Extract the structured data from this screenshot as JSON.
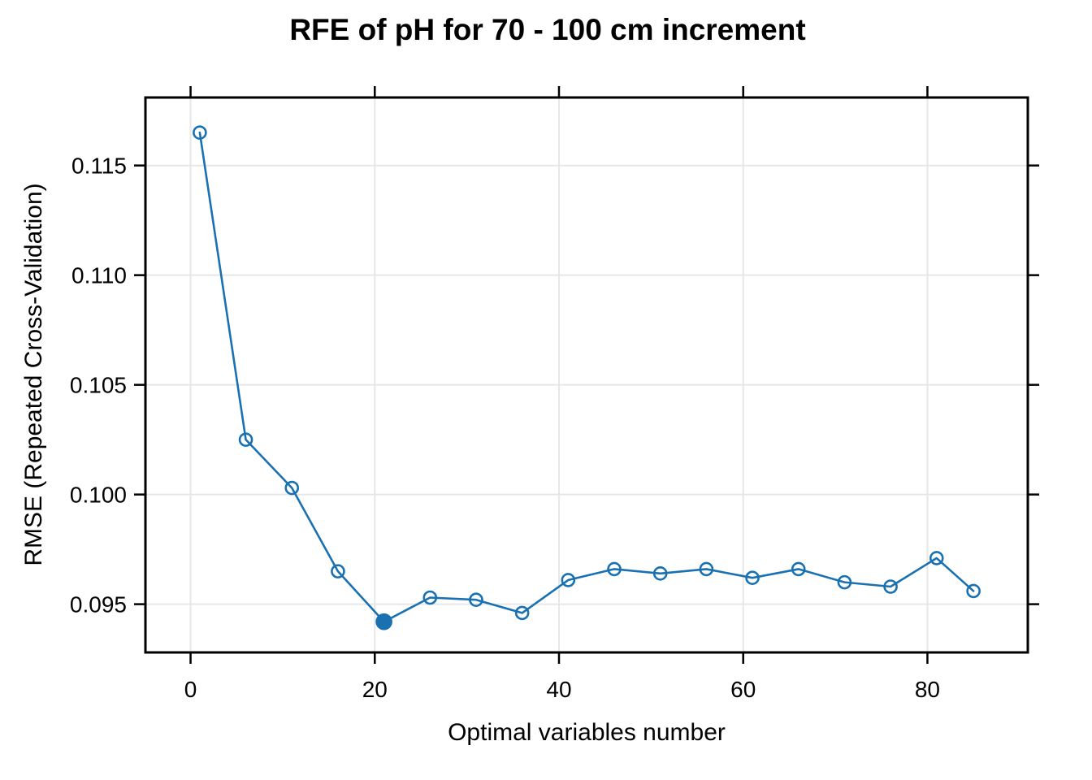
{
  "chart_data": {
    "type": "line",
    "title": "RFE of pH for 70 - 100 cm increment",
    "xlabel": "Optimal variables number",
    "ylabel": "RMSE (Repeated Cross-Validation)",
    "x": [
      1,
      6,
      11,
      16,
      21,
      26,
      31,
      36,
      41,
      46,
      51,
      56,
      61,
      66,
      71,
      76,
      81,
      85
    ],
    "y": [
      0.1165,
      0.1025,
      0.1003,
      0.0965,
      0.0942,
      0.0953,
      0.0952,
      0.0946,
      0.0961,
      0.0966,
      0.0964,
      0.0966,
      0.0962,
      0.0966,
      0.096,
      0.0958,
      0.0971,
      0.0956
    ],
    "optimal_x": 21,
    "optimal_y": 0.0942,
    "xticks": [
      0,
      20,
      40,
      60,
      80
    ],
    "xtick_labels": [
      "0",
      "20",
      "40",
      "60",
      "80"
    ],
    "yticks": [
      0.095,
      0.1,
      0.105,
      0.11,
      0.115
    ],
    "ytick_labels": [
      "0.095",
      "0.100",
      "0.105",
      "0.110",
      "0.115"
    ],
    "xlim": [
      -4.9,
      90.9
    ],
    "ylim": [
      0.0928,
      0.1181
    ],
    "grid": true,
    "legend": "none",
    "marker": "open-circle",
    "optimal_marker": "filled-circle",
    "colors": {
      "series": "#1971b2",
      "grid": "#e7e7e7",
      "axis": "#000000",
      "background": "#ffffff"
    }
  }
}
